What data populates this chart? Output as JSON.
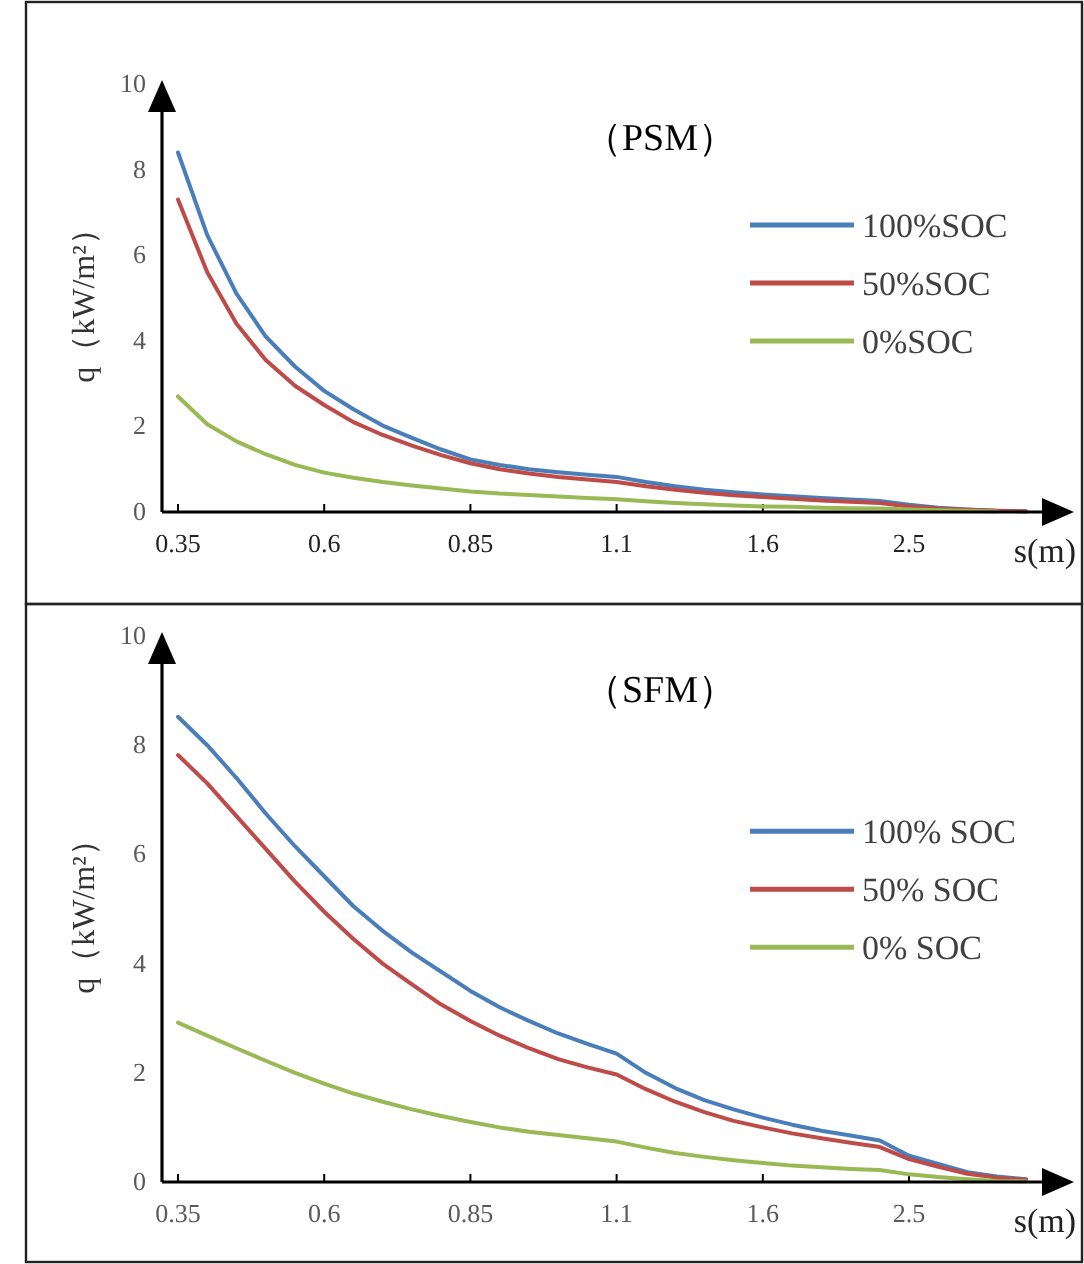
{
  "chart_data": [
    {
      "type": "line",
      "title": "（PSM）",
      "xlabel": "s(m)",
      "ylabel": "q（kW/m²）",
      "categories": [
        "0.35",
        null,
        null,
        null,
        null,
        "0.6",
        null,
        null,
        null,
        null,
        "0.85",
        null,
        null,
        null,
        null,
        "1.1",
        null,
        null,
        null,
        null,
        "1.6",
        null,
        null,
        null,
        null,
        "2.5",
        null,
        null,
        null,
        null
      ],
      "ylim": [
        0,
        10
      ],
      "yticks": [
        0,
        2,
        4,
        6,
        8,
        10
      ],
      "legend": "right",
      "series": [
        {
          "name": "100%SOC",
          "color": "#4a7ebb",
          "values": [
            8.4,
            6.47,
            5.1,
            4.1,
            3.4,
            2.83,
            2.4,
            2.02,
            1.73,
            1.46,
            1.23,
            1.1,
            1.0,
            0.93,
            0.87,
            0.82,
            0.7,
            0.6,
            0.52,
            0.46,
            0.41,
            0.37,
            0.33,
            0.29,
            0.26,
            0.17,
            0.1,
            0.06,
            0.03,
            0.02
          ]
        },
        {
          "name": "50%SOC",
          "color": "#be4b48",
          "values": [
            7.3,
            5.6,
            4.4,
            3.55,
            2.95,
            2.5,
            2.1,
            1.8,
            1.55,
            1.33,
            1.14,
            1.0,
            0.9,
            0.82,
            0.76,
            0.7,
            0.6,
            0.52,
            0.45,
            0.39,
            0.35,
            0.31,
            0.27,
            0.24,
            0.21,
            0.13,
            0.08,
            0.05,
            0.03,
            0.01
          ]
        },
        {
          "name": "0%SOC",
          "color": "#98b954",
          "values": [
            2.7,
            2.05,
            1.65,
            1.35,
            1.1,
            0.92,
            0.8,
            0.7,
            0.62,
            0.55,
            0.48,
            0.43,
            0.4,
            0.36,
            0.33,
            0.3,
            0.25,
            0.21,
            0.18,
            0.15,
            0.13,
            0.12,
            0.1,
            0.09,
            0.08,
            0.06,
            0.04,
            0.03,
            0.01,
            null
          ]
        }
      ]
    },
    {
      "type": "line",
      "title": "（SFM）",
      "xlabel": "s(m)",
      "ylabel": "q（kW/m²）",
      "categories": [
        "0.35",
        null,
        null,
        null,
        null,
        "0.6",
        null,
        null,
        null,
        null,
        "0.85",
        null,
        null,
        null,
        null,
        "1.1",
        null,
        null,
        null,
        null,
        "1.6",
        null,
        null,
        null,
        null,
        "2.5",
        null,
        null,
        null,
        null
      ],
      "ylim": [
        0,
        10
      ],
      "yticks": [
        0,
        2,
        4,
        6,
        8,
        10
      ],
      "legend": "right",
      "series": [
        {
          "name": "100% SOC",
          "color": "#4a7ebb",
          "values": [
            8.52,
            8.0,
            7.4,
            6.75,
            6.15,
            5.6,
            5.05,
            4.6,
            4.2,
            3.85,
            3.5,
            3.2,
            2.95,
            2.72,
            2.53,
            2.35,
            2.0,
            1.72,
            1.5,
            1.33,
            1.18,
            1.05,
            0.94,
            0.85,
            0.76,
            0.48,
            0.33,
            0.18,
            0.1,
            0.05
          ]
        },
        {
          "name": "50% SOC",
          "color": "#be4b48",
          "values": [
            7.82,
            7.3,
            6.7,
            6.1,
            5.5,
            4.95,
            4.45,
            4.0,
            3.62,
            3.25,
            2.95,
            2.68,
            2.45,
            2.25,
            2.1,
            1.97,
            1.7,
            1.47,
            1.28,
            1.12,
            1.0,
            0.89,
            0.8,
            0.72,
            0.64,
            0.42,
            0.28,
            0.15,
            0.08,
            0.04
          ]
        },
        {
          "name": "0% SOC",
          "color": "#98b954",
          "values": [
            2.92,
            2.68,
            2.45,
            2.22,
            2.0,
            1.8,
            1.62,
            1.47,
            1.33,
            1.21,
            1.1,
            1.0,
            0.92,
            0.86,
            0.8,
            0.74,
            0.63,
            0.53,
            0.46,
            0.4,
            0.35,
            0.3,
            0.27,
            0.24,
            0.22,
            0.14,
            0.09,
            0.05,
            0.02,
            0.01
          ]
        }
      ]
    }
  ]
}
